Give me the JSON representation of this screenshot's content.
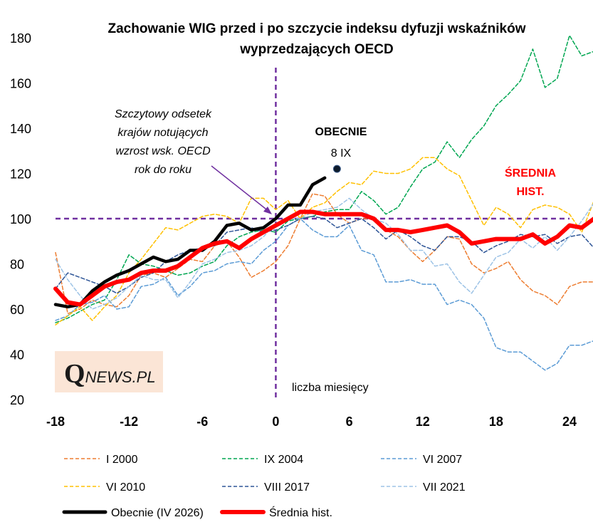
{
  "chart_data": {
    "type": "line",
    "title_line1": "Zachowanie WIG przed i po szczycie indeksu dyfuzji wskaźników",
    "title_line2": "wyprzedzających OECD",
    "xlabel": "liczba miesięcy",
    "ylabel": "",
    "xlim": [
      -18,
      24
    ],
    "ylim": [
      20,
      180
    ],
    "x_ticks": [
      -18,
      -12,
      -6,
      0,
      6,
      12,
      18,
      24
    ],
    "y_ticks": [
      20,
      40,
      60,
      80,
      100,
      120,
      140,
      160,
      180
    ],
    "grid": false,
    "reference_lines": {
      "x": 0,
      "y": 100
    },
    "annotation_peak": [
      "Szczytowy odsetek",
      "krajów notujących",
      "wzrost wsk. OECD",
      "rok do roku"
    ],
    "annotation_current": "OBECNIE",
    "annotation_date": "8 IX",
    "annotation_avg": [
      "ŚREDNIA",
      "HIST."
    ],
    "current_point": {
      "x": 5,
      "y": 122
    },
    "logo": "QNEWS.PL",
    "colors": {
      "i2000": "#ED7D31",
      "ix2004": "#00A651",
      "vi2007": "#5B9BD5",
      "vi2010": "#FFC000",
      "viii2017": "#2E5597",
      "vii2021": "#9DC3E6",
      "current": "#000000",
      "avg": "#FF0000",
      "ref": "#7030A0",
      "avg_label": "#FF0000"
    },
    "series": [
      {
        "key": "i2000",
        "name": "I 2000",
        "style": "dashed",
        "x_start": -18,
        "values": [
          85,
          58,
          60,
          64,
          62,
          61,
          66,
          75,
          76,
          74,
          78,
          82,
          81,
          88,
          90,
          83,
          74,
          77,
          81,
          88,
          100,
          111,
          110,
          102,
          98,
          100,
          100,
          95,
          92,
          86,
          81,
          86,
          92,
          91,
          80,
          76,
          78,
          81,
          73,
          68,
          66,
          62,
          70,
          72,
          72,
          84
        ]
      },
      {
        "key": "ix2004",
        "name": "IX 2004",
        "style": "dashed",
        "x_start": -18,
        "values": [
          54,
          56,
          59,
          62,
          64,
          73,
          84,
          80,
          79,
          77,
          75,
          76,
          79,
          81,
          88,
          92,
          94,
          95,
          94,
          99,
          100,
          101,
          103,
          104,
          104,
          112,
          108,
          102,
          105,
          114,
          122,
          125,
          134,
          127,
          135,
          141,
          150,
          155,
          161,
          175,
          158,
          162,
          181,
          172,
          174
        ]
      },
      {
        "key": "vi2007",
        "name": "VI 2007",
        "style": "dashed",
        "x_start": -18,
        "values": [
          55,
          57,
          62,
          63,
          66,
          60,
          61,
          70,
          71,
          74,
          66,
          70,
          76,
          77,
          80,
          81,
          80,
          86,
          90,
          97,
          100,
          95,
          92,
          92,
          97,
          86,
          84,
          72,
          72,
          73,
          71,
          71,
          62,
          64,
          62,
          56,
          43,
          41,
          41,
          37,
          33,
          36,
          44,
          44,
          46
        ]
      },
      {
        "key": "vi2010",
        "name": "VI 2010",
        "style": "dashed",
        "x_start": -18,
        "values": [
          53,
          57,
          61,
          55,
          61,
          66,
          76,
          82,
          89,
          96,
          95,
          98,
          101,
          102,
          101,
          98,
          109,
          109,
          104,
          108,
          100,
          105,
          107,
          112,
          116,
          115,
          121,
          120,
          120,
          122,
          127,
          127,
          122,
          119,
          108,
          97,
          105,
          102,
          96,
          104,
          106,
          105,
          102,
          94,
          108
        ]
      },
      {
        "key": "viii2017",
        "name": "VIII 2017",
        "style": "dashed",
        "x_start": -18,
        "values": [
          69,
          76,
          74,
          72,
          70,
          67,
          70,
          74,
          76,
          81,
          84,
          86,
          87,
          88,
          94,
          95,
          96,
          94,
          95,
          97,
          100,
          101,
          100,
          96,
          98,
          100,
          96,
          91,
          95,
          92,
          88,
          86,
          92,
          92,
          90,
          85,
          88,
          90,
          93,
          92,
          93,
          89,
          92,
          93,
          87
        ]
      },
      {
        "key": "vii2021",
        "name": "VII 2021",
        "style": "dashed",
        "x_start": -18,
        "values": [
          82,
          73,
          66,
          60,
          62,
          65,
          70,
          75,
          73,
          73,
          65,
          72,
          80,
          82,
          85,
          86,
          88,
          92,
          98,
          100,
          100,
          103,
          104,
          105,
          109,
          104,
          100,
          98,
          93,
          86,
          86,
          79,
          80,
          72,
          67,
          75,
          83,
          85,
          91,
          87,
          92,
          86,
          92,
          99,
          107
        ]
      },
      {
        "key": "current",
        "name": "Obecnie (IV 2026)",
        "style": "solid-bold",
        "x_start": -18,
        "values": [
          62,
          61,
          62,
          68,
          72,
          75,
          77,
          80,
          83,
          81,
          82,
          86,
          86,
          90,
          97,
          98,
          95,
          96,
          100,
          106,
          106,
          115,
          118
        ]
      },
      {
        "key": "avg",
        "name": "Średnia hist.",
        "style": "solid-bold",
        "x_start": -18,
        "values": [
          69,
          63,
          62,
          66,
          70,
          72,
          73,
          76,
          77,
          77,
          79,
          83,
          87,
          89,
          90,
          87,
          91,
          94,
          97,
          100,
          103,
          103,
          102,
          102,
          102,
          102,
          100,
          95,
          95,
          94,
          95,
          96,
          97,
          94,
          89,
          90,
          91,
          91,
          91,
          93,
          89,
          92,
          97,
          96,
          100
        ]
      }
    ]
  }
}
